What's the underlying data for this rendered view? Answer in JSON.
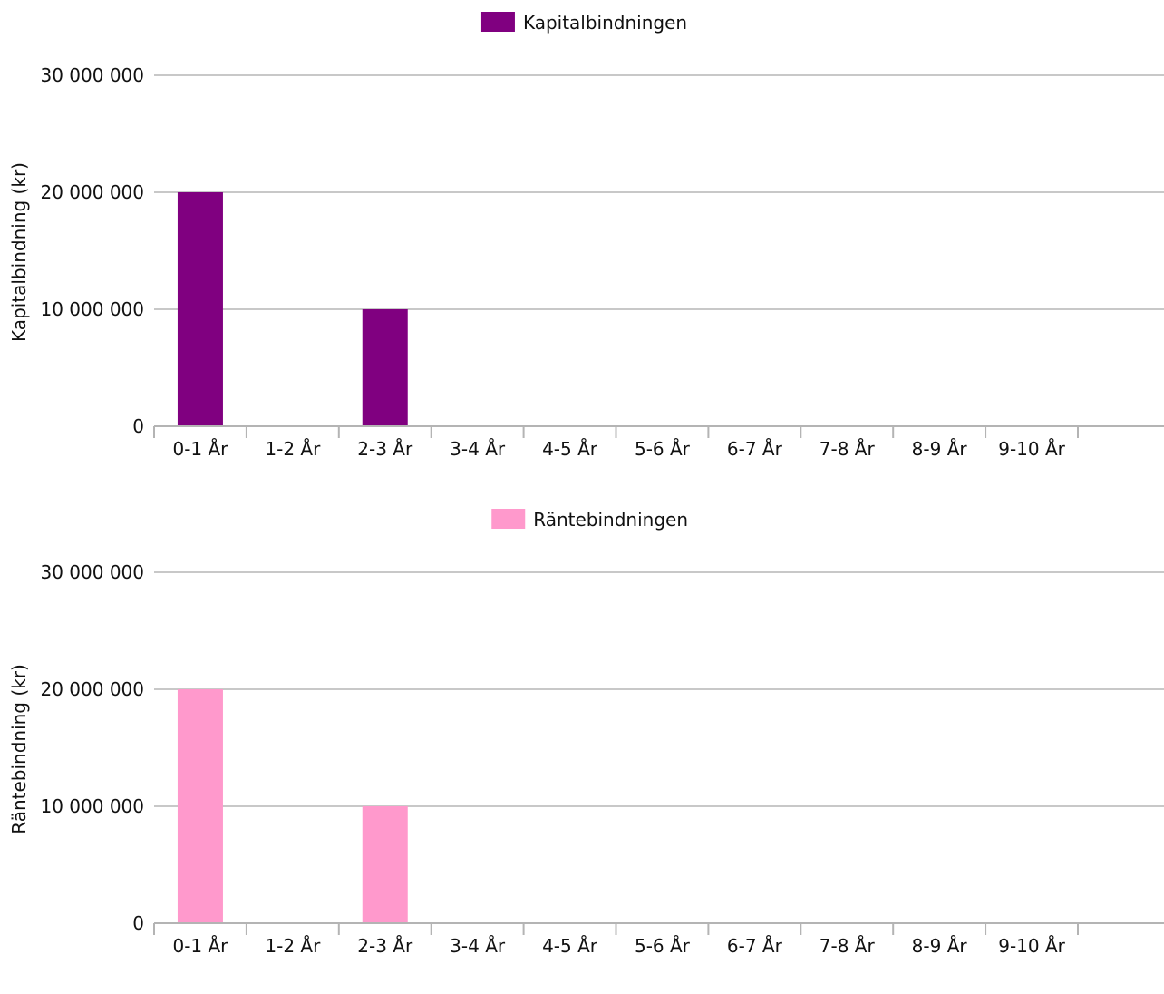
{
  "chart_data": [
    {
      "type": "bar",
      "categories": [
        "0-1 År",
        "1-2 År",
        "2-3 År",
        "3-4 År",
        "4-5 År",
        "5-6 År",
        "6-7 År",
        "7-8 År",
        "8-9 År",
        "9-10 År"
      ],
      "series": [
        {
          "name": "Kapitalbindningen",
          "color": "#800080",
          "values": [
            20000000,
            0,
            10000000,
            0,
            0,
            0,
            0,
            0,
            0,
            0
          ]
        }
      ],
      "ylabel": "Kapitalbindning (kr)",
      "ylim": [
        0,
        30000000
      ],
      "yticks": [
        "0",
        "10 000 000",
        "20 000 000",
        "30 000 000"
      ],
      "grid": true,
      "legend_position": "top-center"
    },
    {
      "type": "bar",
      "categories": [
        "0-1 År",
        "1-2 År",
        "2-3 År",
        "3-4 År",
        "4-5 År",
        "5-6 År",
        "6-7 År",
        "7-8 År",
        "8-9 År",
        "9-10 År"
      ],
      "series": [
        {
          "name": "Räntebindningen",
          "color": "#ff99cc",
          "values": [
            20000000,
            0,
            10000000,
            0,
            0,
            0,
            0,
            0,
            0,
            0
          ]
        }
      ],
      "ylabel": "Räntebindning (kr)",
      "ylim": [
        0,
        30000000
      ],
      "yticks": [
        "0",
        "10 000 000",
        "20 000 000",
        "30 000 000"
      ],
      "grid": true,
      "legend_position": "top-center"
    }
  ]
}
